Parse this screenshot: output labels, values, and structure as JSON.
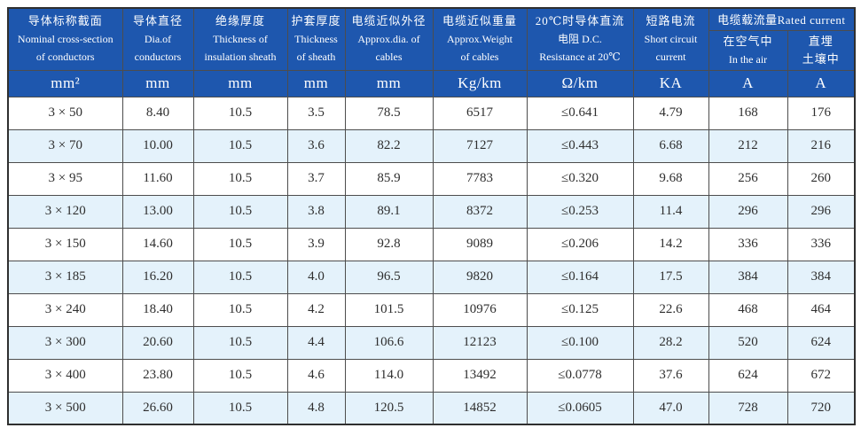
{
  "table": {
    "header": {
      "columns": [
        {
          "lines": [
            "导体标称截面",
            "Nominal cross-section",
            "of conductors"
          ]
        },
        {
          "lines": [
            "导体直径",
            "Dia.of",
            "conductors"
          ]
        },
        {
          "lines": [
            "绝缘厚度",
            "Thickness of",
            "insulation sheath"
          ]
        },
        {
          "lines": [
            "护套厚度",
            "Thickness",
            "of sheath"
          ]
        },
        {
          "lines": [
            "电缆近似外径",
            "Approx.dia. of",
            "cables"
          ]
        },
        {
          "lines": [
            "电缆近似重量",
            "Approx.Weight",
            "of cables"
          ]
        },
        {
          "lines": [
            "20℃时导体直流",
            "电阻 D.C.",
            "Resistance at 20℃"
          ]
        },
        {
          "lines": [
            "短路电流",
            "Short circuit",
            "current"
          ]
        }
      ],
      "rated_current_group": "电缆载流量Rated current",
      "rated_current_sub": [
        {
          "lines": [
            "在空气中",
            "In the air"
          ]
        },
        {
          "lines": [
            "直埋",
            "土壤中"
          ]
        }
      ],
      "units": [
        "mm²",
        "mm",
        "mm",
        "mm",
        "mm",
        "Kg/km",
        "Ω/km",
        "KA",
        "A",
        "A"
      ]
    },
    "rows": [
      [
        "3 × 50",
        "8.40",
        "10.5",
        "3.5",
        "78.5",
        "6517",
        "≤0.641",
        "4.79",
        "168",
        "176"
      ],
      [
        "3 × 70",
        "10.00",
        "10.5",
        "3.6",
        "82.2",
        "7127",
        "≤0.443",
        "6.68",
        "212",
        "216"
      ],
      [
        "3 × 95",
        "11.60",
        "10.5",
        "3.7",
        "85.9",
        "7783",
        "≤0.320",
        "9.68",
        "256",
        "260"
      ],
      [
        "3 × 120",
        "13.00",
        "10.5",
        "3.8",
        "89.1",
        "8372",
        "≤0.253",
        "11.4",
        "296",
        "296"
      ],
      [
        "3 × 150",
        "14.60",
        "10.5",
        "3.9",
        "92.8",
        "9089",
        "≤0.206",
        "14.2",
        "336",
        "336"
      ],
      [
        "3 × 185",
        "16.20",
        "10.5",
        "4.0",
        "96.5",
        "9820",
        "≤0.164",
        "17.5",
        "384",
        "384"
      ],
      [
        "3 × 240",
        "18.40",
        "10.5",
        "4.2",
        "101.5",
        "10976",
        "≤0.125",
        "22.6",
        "468",
        "464"
      ],
      [
        "3 × 300",
        "20.60",
        "10.5",
        "4.4",
        "106.6",
        "12123",
        "≤0.100",
        "28.2",
        "520",
        "624"
      ],
      [
        "3 × 400",
        "23.80",
        "10.5",
        "4.6",
        "114.0",
        "13492",
        "≤0.0778",
        "37.6",
        "624",
        "672"
      ],
      [
        "3 × 500",
        "26.60",
        "10.5",
        "4.8",
        "120.5",
        "14852",
        "≤0.0605",
        "47.0",
        "728",
        "720"
      ]
    ]
  },
  "colors": {
    "header_blue": "#1e57ae",
    "alt_row_blue": "#e4f2fb",
    "grid_line": "#4d4d4d",
    "outer_border": "#2f2f2f",
    "data_text": "#2e2e2e",
    "header_text": "#ffffff"
  }
}
